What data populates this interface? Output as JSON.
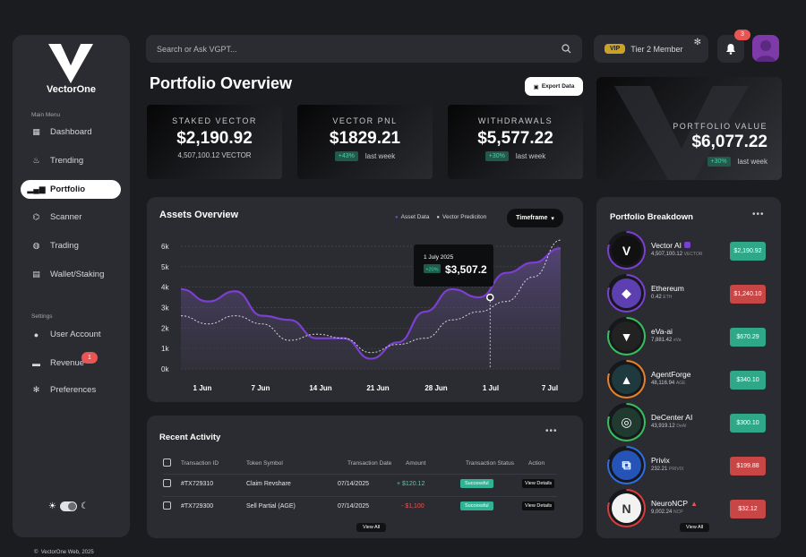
{
  "brand": {
    "name": "VectorOne"
  },
  "sidebar": {
    "main_menu_label": "Main Menu",
    "settings_label": "Settings",
    "main_items": [
      {
        "label": "Dashboard",
        "icon": "dashboard-icon"
      },
      {
        "label": "Trending",
        "icon": "fire-icon"
      },
      {
        "label": "Portfolio",
        "icon": "bar-chart-icon",
        "active": true
      },
      {
        "label": "Scanner",
        "icon": "scanner-icon"
      },
      {
        "label": "Trading",
        "icon": "globe-icon"
      },
      {
        "label": "Wallet/Staking",
        "icon": "wallet-icon"
      }
    ],
    "settings_items": [
      {
        "label": "User Account",
        "icon": "user-icon"
      },
      {
        "label": "Revenue",
        "icon": "wallet-icon",
        "badge": "1"
      },
      {
        "label": "Preferences",
        "icon": "gear-icon"
      }
    ],
    "copyright": "VectorOne Web, 2025"
  },
  "search": {
    "placeholder": "Search or Ask VGPT..."
  },
  "member": {
    "badge": "VIP",
    "tier": "Tier 2 Member"
  },
  "notifications": {
    "count": "3"
  },
  "header": {
    "title": "Portfolio Overview",
    "export_label": "Export Data"
  },
  "stats": [
    {
      "label": "STAKED VECTOR",
      "value": "$2,190.92",
      "sub": "4,507,100.12 VECTOR"
    },
    {
      "label": "VECTOR PNL",
      "value": "$1829.21",
      "pct": "+43%",
      "period": "last week"
    },
    {
      "label": "WITHDRAWALS",
      "value": "$5,577.22",
      "pct": "+30%",
      "period": "last week"
    },
    {
      "label": "PORTFOLIO VALUE",
      "value": "$6,077.22",
      "pct": "+30%",
      "period": "last week"
    }
  ],
  "chart_data": {
    "type": "line",
    "title": "Assets Overview",
    "legend": [
      "Asset Data",
      "Vector Prediciton"
    ],
    "timeframe_label": "Timeframe",
    "x_ticks": [
      "1 Jun",
      "7 Jun",
      "14 Jun",
      "21 Jun",
      "28 Jun",
      "1 Jul",
      "7 Jul"
    ],
    "y_ticks": [
      "0k",
      "1k",
      "2k",
      "3k",
      "4k",
      "5k",
      "6k"
    ],
    "ylim": [
      0,
      6000
    ],
    "series": [
      {
        "name": "Asset Data",
        "color": "#7b3fd1",
        "points": [
          [
            0,
            3900
          ],
          [
            1,
            3300
          ],
          [
            2,
            3800
          ],
          [
            3,
            2600
          ],
          [
            4,
            2400
          ],
          [
            5,
            1500
          ],
          [
            6,
            1500
          ],
          [
            7,
            500
          ],
          [
            8,
            1300
          ],
          [
            9,
            2800
          ],
          [
            10,
            3900
          ],
          [
            11,
            3500
          ],
          [
            12,
            4700
          ],
          [
            13,
            5200
          ],
          [
            14,
            5900
          ]
        ]
      },
      {
        "name": "Vector Prediciton",
        "color": "#d8d8dc",
        "points": [
          [
            0,
            2600
          ],
          [
            1,
            2200
          ],
          [
            2,
            2600
          ],
          [
            3,
            2200
          ],
          [
            4,
            1400
          ],
          [
            5,
            1700
          ],
          [
            6,
            1500
          ],
          [
            7,
            800
          ],
          [
            8,
            1200
          ],
          [
            9,
            1500
          ],
          [
            10,
            2400
          ],
          [
            11,
            2800
          ],
          [
            12,
            3300
          ],
          [
            13,
            4500
          ],
          [
            14,
            6300
          ]
        ]
      }
    ],
    "tooltip": {
      "date": "1 July 2025",
      "pct": "+20%",
      "value": "$3,507.2"
    }
  },
  "activity": {
    "title": "Recent Activity",
    "columns": [
      "Transaction ID",
      "Token Symbol",
      "Transaction Date",
      "Amount",
      "Transaction Status",
      "Action"
    ],
    "rows": [
      {
        "id": "#TX729310",
        "token": "Claim Revshare",
        "date": "07/14/2025",
        "amount": "+ $120.12",
        "direction": "up",
        "status": "Successful",
        "action": "View Details"
      },
      {
        "id": "#TX729300",
        "token": "Sell Partial (AGE)",
        "date": "07/14/2025",
        "amount": "- $1,100",
        "direction": "down",
        "status": "Successful",
        "action": "View Details"
      }
    ],
    "view_all": "View All"
  },
  "breakdown": {
    "title": "Portfolio Breakdown",
    "view_all": "View All",
    "assets": [
      {
        "name": "Vector AI",
        "amount": "4,507,100.12",
        "symbol": "VECTOR",
        "value": "$2,190.92",
        "trend": "up",
        "ring": "#7b3fd1",
        "logo_bg": "#111",
        "logo_text": "V"
      },
      {
        "name": "Ethereum",
        "amount": "0.42",
        "symbol": "ETH",
        "value": "$1,240.10",
        "trend": "down",
        "ring": "#7b3fd1",
        "logo_bg": "#5d3fb1",
        "logo_text": "◆"
      },
      {
        "name": "eVa-ai",
        "amount": "7,881.42",
        "symbol": "eVa",
        "value": "$670.29",
        "trend": "up",
        "ring": "#36c05d",
        "logo_bg": "#222",
        "logo_text": "▼"
      },
      {
        "name": "AgentForge",
        "amount": "48,116.94",
        "symbol": "AGE",
        "value": "$340.10",
        "trend": "up",
        "ring": "#e8812a",
        "logo_bg": "#1f3a3f",
        "logo_text": "▲"
      },
      {
        "name": "DeCenter AI",
        "amount": "43,919.12",
        "symbol": "DeAI",
        "value": "$300.10",
        "trend": "up",
        "ring": "#36c05d",
        "logo_bg": "#203a2f",
        "logo_text": "◎"
      },
      {
        "name": "Privix",
        "amount": "232.21",
        "symbol": "PRIVIX",
        "value": "$199.88",
        "trend": "down",
        "ring": "#2f6de0",
        "logo_bg": "#2553b8",
        "logo_text": "⧉"
      },
      {
        "name": "NeuroNCP",
        "amount": "9,002.24",
        "symbol": "NCP",
        "value": "$32.12",
        "trend": "down",
        "ring": "#d83c3c",
        "logo_bg": "#f2f2f2",
        "logo_text": "N"
      }
    ]
  }
}
